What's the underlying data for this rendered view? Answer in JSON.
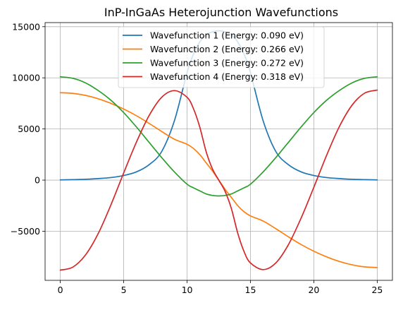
{
  "chart_data": {
    "type": "line",
    "title": "InP-InGaAs Heterojunction Wavefunctions",
    "xlabel": "",
    "ylabel": "",
    "xlim": [
      -1.2,
      26.2
    ],
    "ylim": [
      -9800,
      15400
    ],
    "xticks": [
      0,
      5,
      10,
      15,
      20,
      25
    ],
    "xtick_labels": [
      "0",
      "5",
      "10",
      "15",
      "20",
      "25"
    ],
    "yticks": [
      -5000,
      0,
      5000,
      10000,
      15000
    ],
    "ytick_labels": [
      "−5000",
      "0",
      "5000",
      "10000",
      "15000"
    ],
    "grid": true,
    "legend_position": "top-center",
    "series": [
      {
        "name": "Wavefunction 1 (Energy: 0.090 eV)",
        "color": "#1f77b4",
        "x": [
          0,
          1,
          2,
          3,
          4,
          5,
          6,
          7,
          8,
          9,
          10,
          10.5,
          11,
          11.5,
          12,
          12.5,
          13,
          13.5,
          14,
          14.5,
          15,
          16,
          17,
          18,
          19,
          20,
          21,
          22,
          23,
          24,
          25
        ],
        "y": [
          20,
          50,
          80,
          150,
          250,
          450,
          800,
          1500,
          2800,
          5800,
          10500,
          12300,
          13500,
          14200,
          14500,
          14600,
          14500,
          14200,
          13500,
          12300,
          10500,
          5800,
          2800,
          1500,
          800,
          450,
          250,
          150,
          80,
          50,
          20
        ]
      },
      {
        "name": "Wavefunction 2 (Energy: 0.266 eV)",
        "color": "#ff7f0e",
        "x": [
          0,
          1,
          2,
          3,
          4,
          5,
          6,
          7,
          8,
          9,
          10,
          10.5,
          11,
          11.5,
          12,
          12.5,
          13,
          13.5,
          14,
          14.5,
          15,
          16,
          17,
          18,
          19,
          20,
          21,
          22,
          23,
          24,
          25
        ],
        "y": [
          8550,
          8480,
          8280,
          7950,
          7500,
          6950,
          6300,
          5550,
          4750,
          4000,
          3500,
          3100,
          2500,
          1700,
          900,
          0,
          -900,
          -1700,
          -2500,
          -3100,
          -3500,
          -4000,
          -4750,
          -5550,
          -6300,
          -6950,
          -7500,
          -7950,
          -8280,
          -8480,
          -8550
        ]
      },
      {
        "name": "Wavefunction 3 (Energy: 0.272 eV)",
        "color": "#2ca02c",
        "x": [
          0,
          1,
          2,
          3,
          4,
          5,
          6,
          7,
          8,
          9,
          10,
          10.5,
          11,
          11.5,
          12,
          12.5,
          13,
          13.5,
          14,
          14.5,
          15,
          16,
          17,
          18,
          19,
          20,
          21,
          22,
          23,
          24,
          25
        ],
        "y": [
          10100,
          9950,
          9500,
          8750,
          7800,
          6600,
          5200,
          3700,
          2200,
          800,
          -400,
          -750,
          -1050,
          -1350,
          -1500,
          -1550,
          -1500,
          -1350,
          -1050,
          -750,
          -400,
          800,
          2200,
          3700,
          5200,
          6600,
          7800,
          8750,
          9500,
          9950,
          10100
        ]
      },
      {
        "name": "Wavefunction 4 (Energy: 0.318 eV)",
        "color": "#d62728",
        "x": [
          0,
          1,
          2,
          3,
          4,
          5,
          6,
          7,
          8,
          9,
          10,
          10.5,
          11,
          11.5,
          12,
          12.5,
          13,
          13.5,
          14,
          14.5,
          15,
          16,
          17,
          18,
          19,
          20,
          21,
          22,
          23,
          24,
          25
        ],
        "y": [
          -8800,
          -8500,
          -7300,
          -5200,
          -2400,
          700,
          3700,
          6300,
          8100,
          8750,
          8100,
          7000,
          5200,
          2800,
          1100,
          0,
          -1100,
          -2800,
          -5200,
          -7000,
          -8100,
          -8750,
          -8100,
          -6300,
          -3700,
          -700,
          2400,
          5200,
          7300,
          8500,
          8800
        ]
      }
    ]
  }
}
